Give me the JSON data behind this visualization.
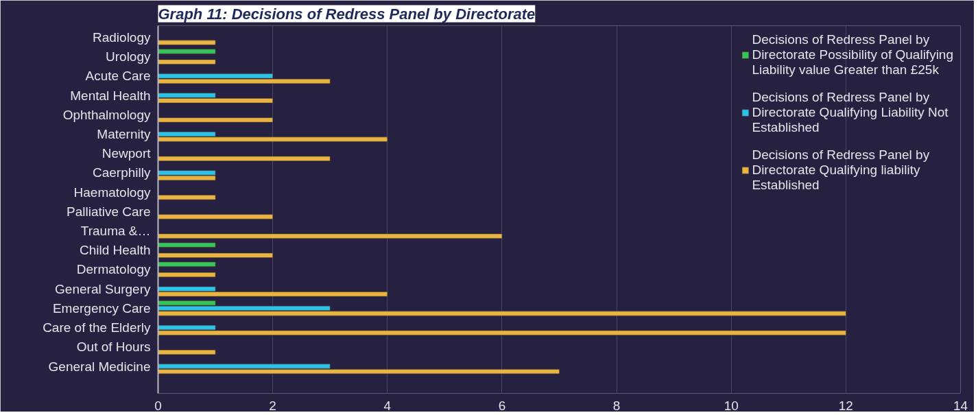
{
  "chart_data": {
    "type": "bar",
    "orientation": "horizontal",
    "title": "Graph 11: Decisions of Redress Panel by Directorate",
    "categories": [
      "Radiology",
      "Urology",
      "Acute Care",
      "Mental Health",
      "Ophthalmology",
      "Maternity",
      "Newport",
      "Caerphilly",
      "Haematology",
      "Palliative Care",
      "Trauma &…",
      "Child Health",
      "Dermatology",
      "General Surgery",
      "Emergency Care",
      "Care of the Elderly",
      "Out of Hours",
      "General Medicine"
    ],
    "series": [
      {
        "name": "Decisions of Redress Panel by Directorate Possibility of Qualifying Liability value Greater than £25k",
        "color": "#35c45a",
        "values": [
          null,
          1,
          null,
          null,
          null,
          null,
          null,
          null,
          null,
          null,
          null,
          1,
          1,
          null,
          1,
          null,
          null,
          null
        ]
      },
      {
        "name": "Decisions of Redress Panel by Directorate Qualifying Liability Not Established",
        "color": "#2cc3ea",
        "values": [
          null,
          null,
          2,
          1,
          null,
          1,
          null,
          1,
          null,
          null,
          null,
          null,
          null,
          1,
          3,
          1,
          null,
          3
        ]
      },
      {
        "name": "Decisions of Redress Panel by Directorate Qualifying liability Established",
        "color": "#e9b443",
        "values": [
          1,
          1,
          3,
          2,
          2,
          4,
          3,
          1,
          1,
          2,
          6,
          2,
          1,
          4,
          12,
          12,
          1,
          7
        ]
      }
    ],
    "xlim": [
      0,
      14
    ],
    "xticks": [
      0,
      2,
      4,
      6,
      8,
      10,
      12,
      14
    ],
    "grid": "x",
    "legend": "top right"
  }
}
